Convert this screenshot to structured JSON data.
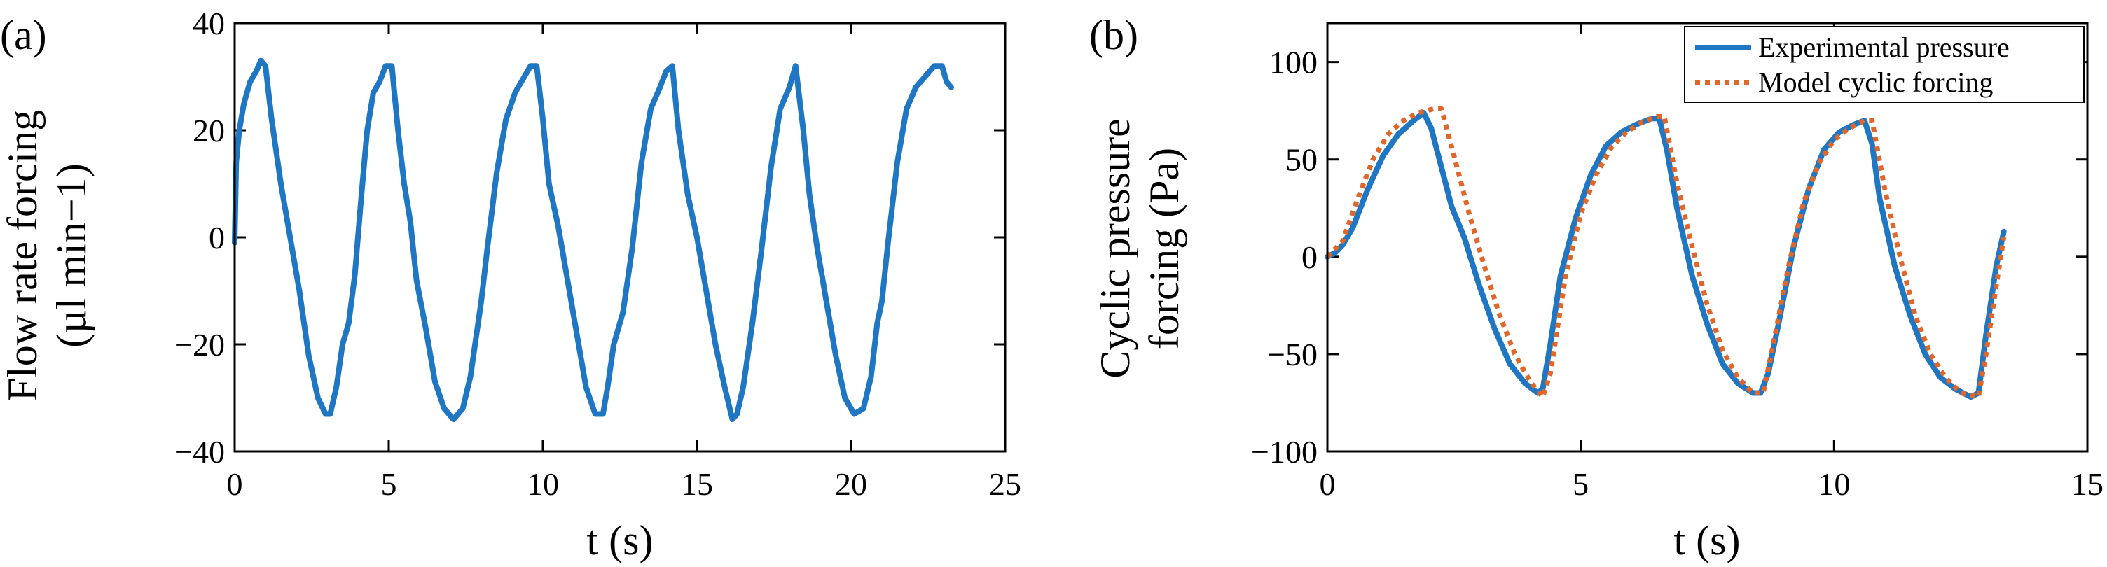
{
  "chart_data": [
    {
      "id": "a",
      "type": "line",
      "panel_label": "(a)",
      "xlabel": "t (s)",
      "ylabel_line1": "Flow rate forcing",
      "ylabel_line2": "(µl min−1)",
      "xlim": [
        0,
        25
      ],
      "ylim": [
        -40,
        40
      ],
      "xticks": [
        0,
        5,
        10,
        15,
        20,
        25
      ],
      "yticks": [
        -40,
        -20,
        0,
        20,
        40
      ],
      "xtick_labels": [
        "0",
        "5",
        "10",
        "15",
        "20",
        "25"
      ],
      "ytick_labels": [
        "−40",
        "−20",
        "0",
        "20",
        "40"
      ],
      "grid": false,
      "series": [
        {
          "color": "#1f77c4",
          "style": "solid",
          "x": [
            0.0,
            0.05,
            0.15,
            0.3,
            0.5,
            0.7,
            0.85,
            1.0,
            1.2,
            1.5,
            1.8,
            2.1,
            2.4,
            2.7,
            2.95,
            3.1,
            3.3,
            3.5,
            3.7,
            3.9,
            4.1,
            4.3,
            4.5,
            4.7,
            4.9,
            5.1,
            5.3,
            5.5,
            5.7,
            5.9,
            6.2,
            6.5,
            6.8,
            7.1,
            7.4,
            7.65,
            7.85,
            8.0,
            8.2,
            8.5,
            8.8,
            9.1,
            9.4,
            9.6,
            9.8,
            10.0,
            10.2,
            10.5,
            10.8,
            11.1,
            11.4,
            11.7,
            11.95,
            12.1,
            12.3,
            12.6,
            12.9,
            13.2,
            13.5,
            13.8,
            14.0,
            14.2,
            14.4,
            14.7,
            15.0,
            15.3,
            15.6,
            15.9,
            16.15,
            16.3,
            16.5,
            16.8,
            17.1,
            17.4,
            17.7,
            18.0,
            18.2,
            18.45,
            18.65,
            18.9,
            19.2,
            19.5,
            19.8,
            20.1,
            20.4,
            20.65,
            20.85,
            21.0,
            21.2,
            21.5,
            21.8,
            22.1,
            22.4,
            22.7,
            22.95,
            23.1,
            23.25
          ],
          "y": [
            -1,
            14,
            20,
            25,
            29,
            31,
            33,
            32,
            22,
            10,
            0,
            -10,
            -22,
            -30,
            -33,
            -33,
            -28,
            -20,
            -16,
            -7,
            7,
            20,
            27,
            29,
            32,
            32,
            20,
            10,
            3,
            -8,
            -17,
            -27,
            -32,
            -34,
            -32,
            -26,
            -18,
            -12,
            -2,
            12,
            22,
            27,
            30,
            32,
            32,
            22,
            10,
            2,
            -8,
            -18,
            -28,
            -33,
            -33,
            -28,
            -20,
            -14,
            -2,
            14,
            24,
            28,
            31,
            32,
            20,
            8,
            0,
            -10,
            -20,
            -28,
            -34,
            -33,
            -28,
            -16,
            -2,
            13,
            24,
            28,
            32,
            20,
            8,
            -2,
            -12,
            -22,
            -30,
            -33,
            -32,
            -26,
            -16,
            -12,
            -1,
            14,
            24,
            28,
            30,
            32,
            32,
            29,
            28
          ]
        }
      ]
    },
    {
      "id": "b",
      "type": "line",
      "panel_label": "(b)",
      "xlabel": "t (s)",
      "ylabel_line1": "Cyclic pressure",
      "ylabel_line2": "forcing (Pa)",
      "xlim": [
        0,
        15
      ],
      "ylim": [
        -100,
        120
      ],
      "xticks": [
        0,
        5,
        10,
        15
      ],
      "yticks": [
        -100,
        -50,
        0,
        50,
        100
      ],
      "xtick_labels": [
        "0",
        "5",
        "10",
        "15"
      ],
      "ytick_labels": [
        "−100",
        "−50",
        "0",
        "50",
        "100"
      ],
      "grid": false,
      "legend_position": "top-right",
      "series": [
        {
          "name": "Experimental pressure",
          "color": "#1f77c4",
          "style": "solid",
          "x": [
            0.0,
            0.15,
            0.3,
            0.5,
            0.8,
            1.1,
            1.4,
            1.7,
            1.9,
            2.05,
            2.25,
            2.45,
            2.7,
            3.0,
            3.3,
            3.6,
            3.9,
            4.15,
            4.25,
            4.4,
            4.6,
            4.9,
            5.2,
            5.5,
            5.8,
            6.1,
            6.4,
            6.55,
            6.7,
            6.9,
            7.2,
            7.5,
            7.8,
            8.1,
            8.4,
            8.55,
            8.7,
            8.9,
            9.2,
            9.5,
            9.8,
            10.1,
            10.4,
            10.6,
            10.75,
            10.9,
            11.2,
            11.5,
            11.8,
            12.1,
            12.4,
            12.7,
            12.85,
            13.0,
            13.2,
            13.35
          ],
          "y": [
            0,
            2,
            6,
            15,
            35,
            52,
            63,
            70,
            74,
            66,
            46,
            26,
            10,
            -15,
            -37,
            -55,
            -65,
            -70,
            -68,
            -45,
            -10,
            20,
            42,
            57,
            64,
            68,
            71,
            71,
            55,
            25,
            -10,
            -35,
            -55,
            -65,
            -70,
            -70,
            -60,
            -35,
            5,
            35,
            55,
            64,
            68,
            70,
            58,
            30,
            -5,
            -30,
            -50,
            -62,
            -68,
            -72,
            -70,
            -40,
            -5,
            13
          ]
        },
        {
          "name": "Model cyclic forcing",
          "color": "#e0662a",
          "style": "dotted",
          "x": [
            0.0,
            0.3,
            0.6,
            0.9,
            1.2,
            1.5,
            1.8,
            2.1,
            2.25,
            2.5,
            2.8,
            3.1,
            3.4,
            3.7,
            4.0,
            4.25,
            4.4,
            4.7,
            5.0,
            5.3,
            5.6,
            5.9,
            6.2,
            6.5,
            6.65,
            6.9,
            7.2,
            7.5,
            7.8,
            8.1,
            8.4,
            8.6,
            8.8,
            9.1,
            9.4,
            9.7,
            10.0,
            10.3,
            10.6,
            10.75,
            11.0,
            11.3,
            11.6,
            11.9,
            12.2,
            12.5,
            12.85,
            13.0,
            13.2,
            13.35
          ],
          "y": [
            0,
            8,
            30,
            50,
            63,
            70,
            74,
            76,
            76,
            52,
            22,
            -5,
            -30,
            -50,
            -64,
            -72,
            -60,
            -10,
            22,
            42,
            56,
            64,
            69,
            72,
            72,
            38,
            5,
            -25,
            -48,
            -62,
            -70,
            -70,
            -45,
            -5,
            28,
            48,
            60,
            66,
            70,
            70,
            35,
            0,
            -30,
            -50,
            -62,
            -70,
            -72,
            -50,
            -15,
            10
          ]
        }
      ]
    }
  ]
}
